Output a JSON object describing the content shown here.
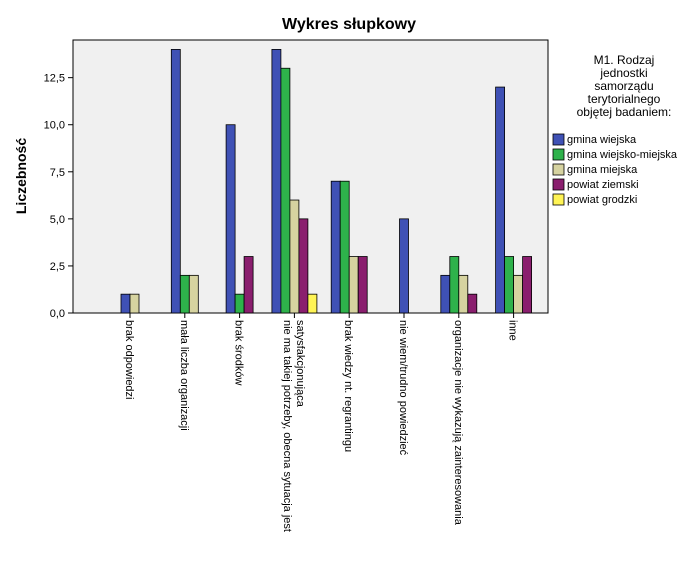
{
  "chart_data": {
    "type": "bar",
    "title": "Wykres słupkowy",
    "ylabel": "Liczebność",
    "xlabel": "",
    "ylim": [
      0,
      14.5
    ],
    "yticks": [
      "0,0",
      "2,5",
      "5,0",
      "7,5",
      "10,0",
      "12,5"
    ],
    "ytick_values": [
      0,
      2.5,
      5,
      7.5,
      10,
      12.5
    ],
    "grid": false,
    "legend_position": "right",
    "legend_title": [
      "M1. Rodzaj",
      "jednostki",
      "samorządu",
      "terytorialnego",
      "objętej badaniem:"
    ],
    "categories": [
      [
        "brak odpowiedzi"
      ],
      [
        "mała liczba organizacji"
      ],
      [
        "brak środków"
      ],
      [
        "nie ma takiej potrzeby, obecna sytuacja jest",
        "satysfakcjonująca"
      ],
      [
        "brak wiedzy nt. regrantingu"
      ],
      [
        "nie wiem/trudno powiedzieć"
      ],
      [
        "organizacje nie wykazują zainteresowania"
      ],
      [
        "inne"
      ]
    ],
    "series": [
      {
        "name": "gmina wiejska",
        "color": "#3F51B5",
        "values": [
          1,
          14,
          10,
          14,
          7,
          5,
          2,
          12
        ]
      },
      {
        "name": "gmina wiejsko-miejska",
        "color": "#2EB24B",
        "values": [
          0,
          2,
          1,
          13,
          7,
          0,
          3,
          3
        ]
      },
      {
        "name": "gmina miejska",
        "color": "#D6D3A0",
        "values": [
          1,
          2,
          0,
          6,
          3,
          0,
          2,
          2
        ]
      },
      {
        "name": "powiat ziemski",
        "color": "#8A1E6E",
        "values": [
          0,
          0,
          3,
          5,
          3,
          0,
          1,
          3
        ]
      },
      {
        "name": "powiat grodzki",
        "color": "#FFF455",
        "values": [
          0,
          0,
          0,
          1,
          0,
          0,
          0,
          0
        ]
      }
    ]
  }
}
